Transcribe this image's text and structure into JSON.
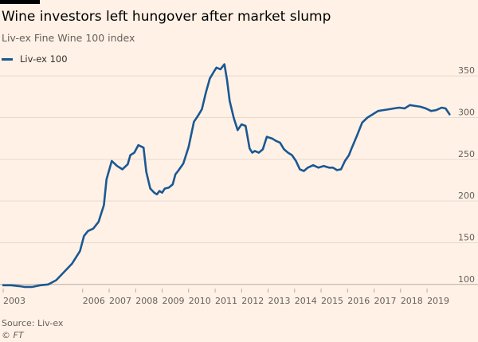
{
  "header": {
    "title": "Wine investors left hungover after market slump",
    "subtitle": "Liv-ex Fine Wine 100 index"
  },
  "footer": {
    "source": "Source: Liv-ex",
    "copyright": "© FT"
  },
  "colors": {
    "background": "#fff1e5",
    "series": "#1a5893",
    "gridline": "#e6d9ce",
    "text": "#66605c"
  },
  "chart_data": {
    "type": "line",
    "title": "Wine investors left hungover after market slump",
    "subtitle": "Liv-ex Fine Wine 100 index",
    "xlabel": "",
    "ylabel": "",
    "xlim": [
      2003.0,
      2019.9
    ],
    "ylim": [
      95,
      355
    ],
    "x_ticks": [
      2003,
      2006,
      2007,
      2008,
      2009,
      2010,
      2011,
      2012,
      2013,
      2014,
      2015,
      2016,
      2017,
      2018,
      2019
    ],
    "x_tick_labels": [
      "2003",
      "2006",
      "2007",
      "2008",
      "2009",
      "2010",
      "2011",
      "2012",
      "2013",
      "2014",
      "2015",
      "2016",
      "2017",
      "2018",
      "2019"
    ],
    "y_ticks": [
      100,
      150,
      200,
      250,
      300,
      350
    ],
    "grid": "horizontal",
    "legend": "top-left",
    "series": [
      {
        "name": "Liv-ex 100",
        "x": [
          2003.0,
          2003.3,
          2003.6,
          2003.8,
          2004.1,
          2004.4,
          2004.7,
          2005.0,
          2005.3,
          2005.6,
          2005.9,
          2006.05,
          2006.2,
          2006.4,
          2006.6,
          2006.8,
          2006.9,
          2007.1,
          2007.3,
          2007.5,
          2007.7,
          2007.8,
          2007.95,
          2008.1,
          2008.3,
          2008.4,
          2008.55,
          2008.7,
          2008.8,
          2008.9,
          2009.0,
          2009.1,
          2009.25,
          2009.4,
          2009.5,
          2009.6,
          2009.8,
          2010.0,
          2010.2,
          2010.35,
          2010.5,
          2010.65,
          2010.8,
          2010.95,
          2011.05,
          2011.2,
          2011.35,
          2011.45,
          2011.55,
          2011.7,
          2011.85,
          2012.0,
          2012.15,
          2012.3,
          2012.4,
          2012.5,
          2012.65,
          2012.8,
          2012.95,
          2013.15,
          2013.3,
          2013.45,
          2013.6,
          2013.75,
          2013.9,
          2014.05,
          2014.2,
          2014.35,
          2014.5,
          2014.7,
          2014.9,
          2015.1,
          2015.3,
          2015.45,
          2015.6,
          2015.75,
          2015.9,
          2016.05,
          2016.15,
          2016.35,
          2016.55,
          2016.75,
          2016.95,
          2017.15,
          2017.35,
          2017.55,
          2017.75,
          2017.95,
          2018.15,
          2018.35,
          2018.55,
          2018.75,
          2018.95,
          2019.15,
          2019.35,
          2019.55,
          2019.7,
          2019.85
        ],
        "values": [
          99,
          99,
          98,
          97,
          97,
          99,
          100,
          105,
          115,
          125,
          140,
          158,
          164,
          167,
          175,
          195,
          226,
          248,
          242,
          238,
          244,
          255,
          258,
          267,
          264,
          235,
          215,
          210,
          208,
          212,
          210,
          215,
          216,
          220,
          232,
          236,
          245,
          265,
          295,
          302,
          310,
          330,
          347,
          355,
          360,
          358,
          364,
          345,
          320,
          300,
          285,
          292,
          290,
          263,
          258,
          260,
          258,
          262,
          277,
          275,
          272,
          270,
          262,
          258,
          255,
          248,
          238,
          236,
          240,
          243,
          240,
          242,
          240,
          240,
          237,
          238,
          248,
          255,
          263,
          278,
          294,
          300,
          304,
          308,
          309,
          310,
          311,
          312,
          311,
          315,
          314,
          313,
          311,
          308,
          309,
          312,
          311,
          304
        ]
      }
    ]
  },
  "legend_label": "Liv-ex 100"
}
